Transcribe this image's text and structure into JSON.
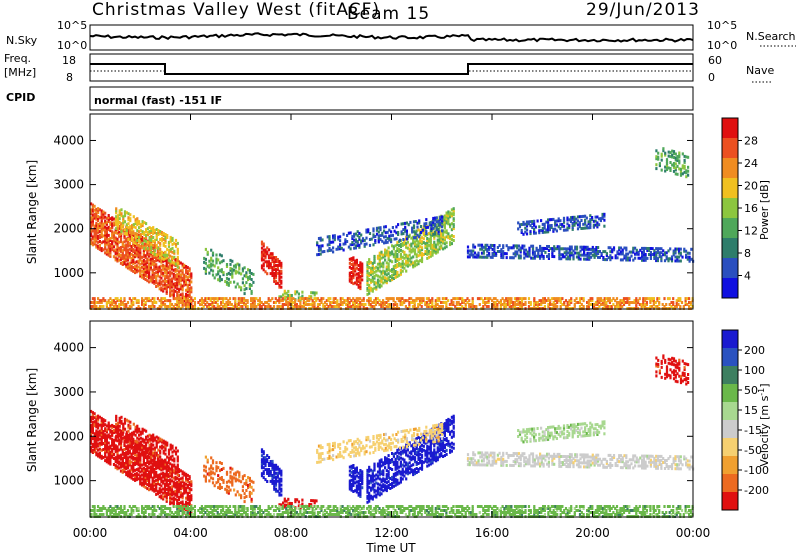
{
  "header": {
    "title": "Christmas Valley West (fitACF)",
    "beam": "Beam 15",
    "date": "29/Jun/2013"
  },
  "panels": {
    "nsky_label": "N.Sky",
    "nsearch_label": "N.Search",
    "nsky_ticks": [
      "10^5",
      "10^0"
    ],
    "nsearch_ticks": [
      "10^5",
      "10^0"
    ],
    "freq_label_1": "Freq.",
    "freq_label_2": "[MHz]",
    "freq_ticks": [
      "18",
      "8"
    ],
    "nave_label": "Nave",
    "nave_ticks": [
      "60",
      "0"
    ],
    "cpid_label": "CPID",
    "cpid_text": "normal (fast) -151 IF"
  },
  "chart_data": [
    {
      "type": "heatmap",
      "title": "",
      "quantity": "Power",
      "ylabel": "Slant Range [km]",
      "xlabel": "Time UT",
      "x_ticks": [
        "00:00",
        "04:00",
        "08:00",
        "12:00",
        "16:00",
        "20:00",
        "00:00"
      ],
      "y_ticks": [
        "1000",
        "2000",
        "3000",
        "4000"
      ],
      "ylim": [
        180,
        4600
      ],
      "colorbar": {
        "label": "Power [dB]",
        "ticks": [
          "4",
          "8",
          "12",
          "16",
          "20",
          "24",
          "28"
        ],
        "range": [
          0,
          30
        ],
        "colors": [
          "#1010e0",
          "#2a4fbf",
          "#2e7d6b",
          "#4fa85a",
          "#8cc63f",
          "#f0c020",
          "#f08c20",
          "#ec5020",
          "#e01010"
        ]
      }
    },
    {
      "type": "heatmap",
      "title": "",
      "quantity": "Velocity",
      "ylabel": "Slant Range [km]",
      "xlabel": "Time UT",
      "x_ticks": [
        "00:00",
        "04:00",
        "08:00",
        "12:00",
        "16:00",
        "20:00",
        "00:00"
      ],
      "y_ticks": [
        "1000",
        "2000",
        "3000",
        "4000"
      ],
      "ylim": [
        180,
        4600
      ],
      "colorbar": {
        "label_main": "Velocity [m s",
        "label_sup": "-1",
        "label_end": "]",
        "ticks": [
          "200",
          "100",
          "50",
          "15",
          "-15",
          "-50",
          "-100",
          "-200"
        ],
        "colors": [
          "#1a1ad0",
          "#2a52c0",
          "#3d7f60",
          "#6ab84a",
          "#a8d890",
          "#cccccc",
          "#f6d070",
          "#f0a030",
          "#ec6a20",
          "#e01010"
        ]
      }
    }
  ],
  "xaxis": {
    "label": "Time UT",
    "ticks": [
      "00:00",
      "04:00",
      "08:00",
      "12:00",
      "16:00",
      "20:00",
      "00:00"
    ]
  }
}
